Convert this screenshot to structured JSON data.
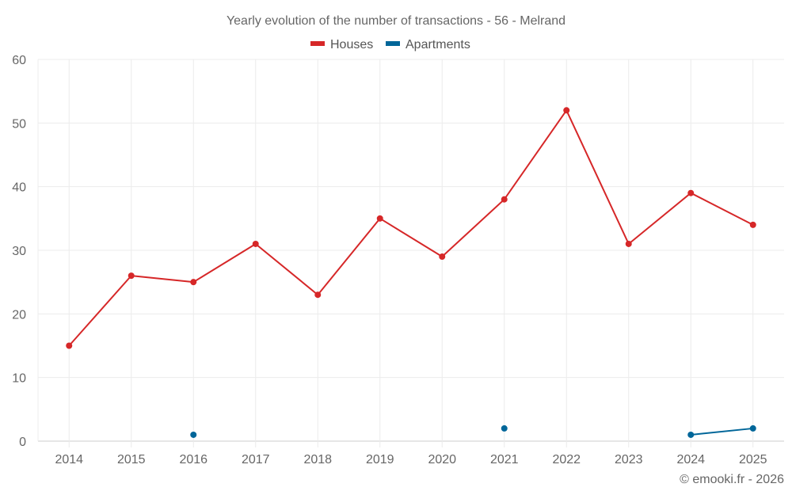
{
  "chart_data": {
    "type": "line",
    "title": "Yearly evolution of the number of transactions - 56 - Melrand",
    "xlabel": "",
    "ylabel": "",
    "categories": [
      "2014",
      "2015",
      "2016",
      "2017",
      "2018",
      "2019",
      "2020",
      "2021",
      "2022",
      "2023",
      "2024",
      "2025"
    ],
    "series": [
      {
        "name": "Houses",
        "color": "#d62728",
        "values": [
          15,
          26,
          25,
          31,
          23,
          35,
          29,
          38,
          52,
          31,
          39,
          34
        ]
      },
      {
        "name": "Apartments",
        "color": "#006699",
        "values": [
          null,
          null,
          1,
          null,
          null,
          null,
          null,
          2,
          null,
          null,
          1,
          2
        ]
      }
    ],
    "ylim": [
      0,
      60
    ],
    "yticks": [
      "0",
      "10",
      "20",
      "30",
      "40",
      "50",
      "60"
    ],
    "grid": true,
    "legend_position": "top-center",
    "credit": "© emooki.fr - 2026"
  }
}
